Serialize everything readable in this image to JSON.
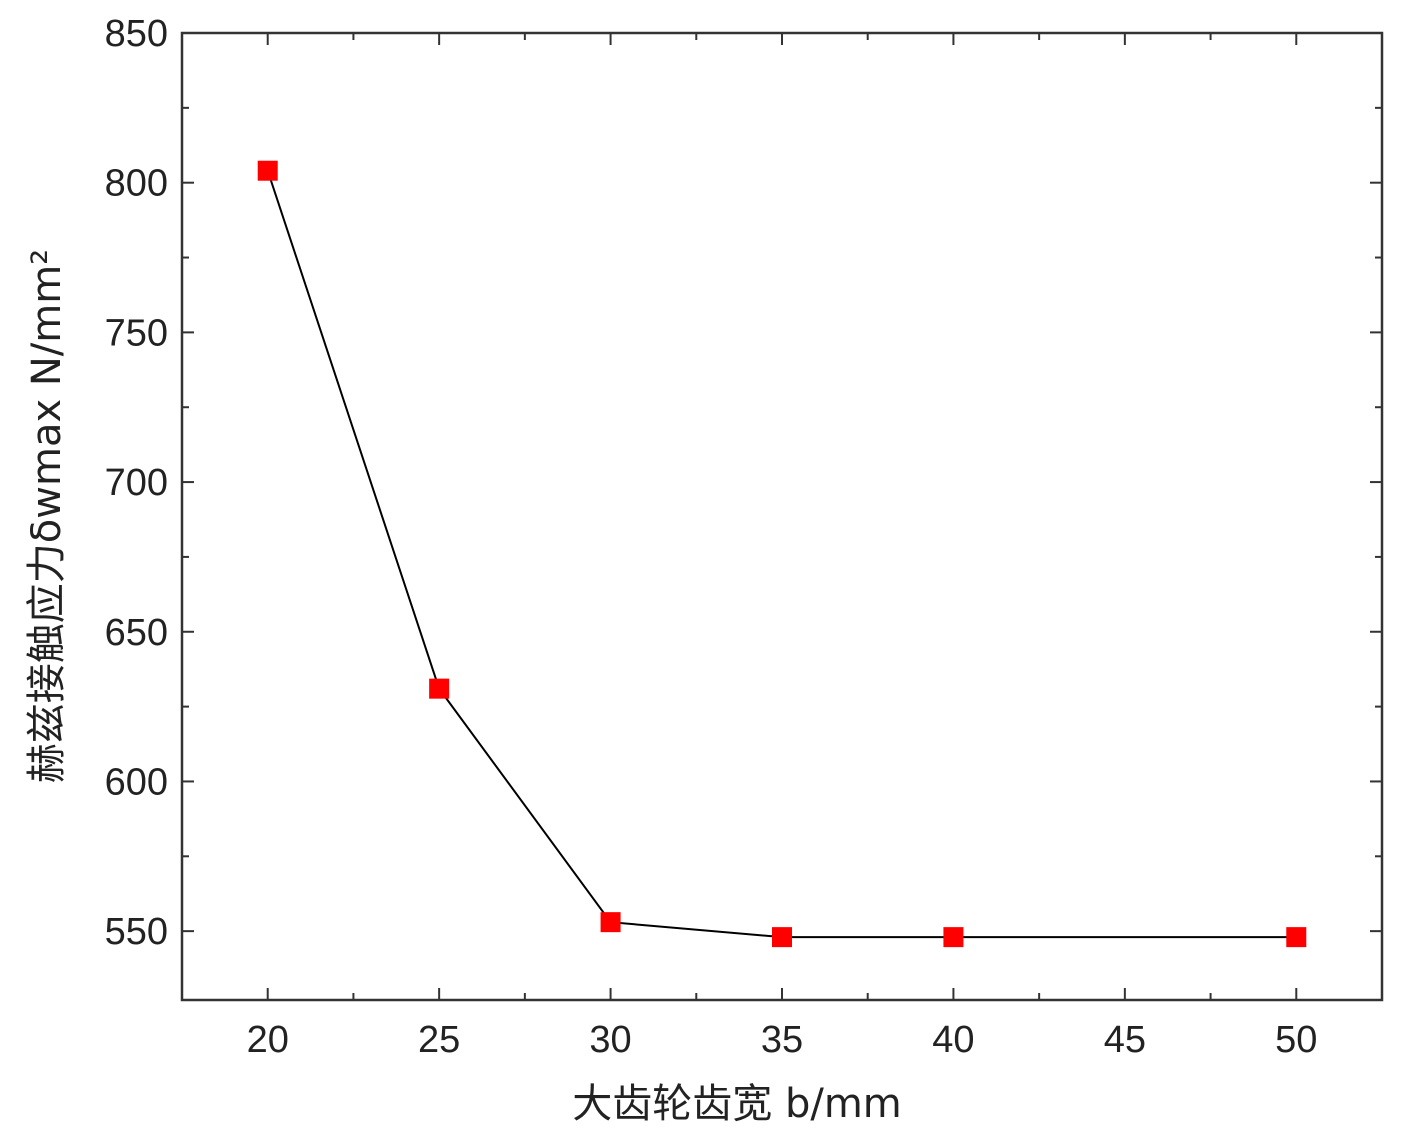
{
  "chart_data": {
    "type": "line",
    "title": "",
    "xlabel": "大齿轮齿宽 b/mm",
    "ylabel": "赫兹接触应力δwmax N/mm²",
    "xlim": [
      17.5,
      52.5
    ],
    "ylim": [
      527,
      850
    ],
    "x_ticks": [
      20,
      25,
      30,
      35,
      40,
      45,
      50
    ],
    "y_ticks": [
      550,
      600,
      650,
      700,
      750,
      800,
      850
    ],
    "grid": false,
    "legend": "none",
    "series": [
      {
        "x": [
          20,
          25,
          30,
          35,
          40,
          50
        ],
        "values": [
          804,
          631,
          553,
          548,
          548,
          548
        ],
        "marker": "square",
        "marker_color": "#ff0000",
        "line_color": "#000000"
      }
    ]
  }
}
